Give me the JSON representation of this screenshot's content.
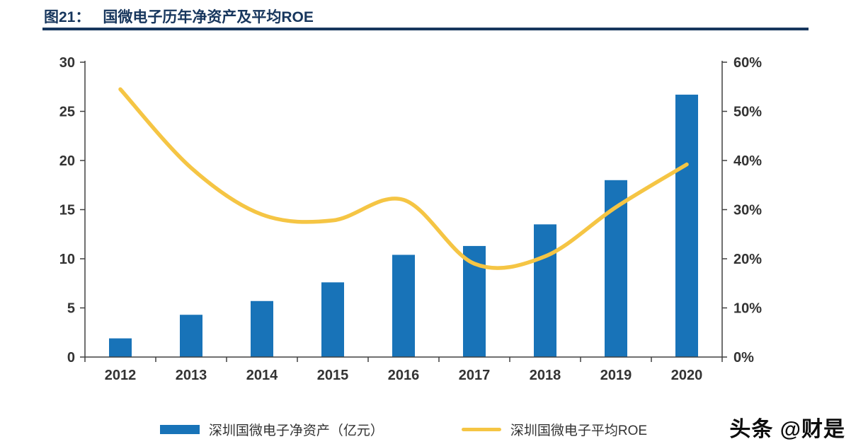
{
  "header": {
    "figure_label": "图21：",
    "title": "国微电子历年净资产及平均ROE"
  },
  "watermark": "头条 @财是",
  "colors": {
    "bar": "#1873B8",
    "line": "#F5C544",
    "title": "#17365D",
    "axis": "#404040"
  },
  "chart_data": {
    "type": "bar",
    "subtype": "bar+line combo, dual axis",
    "title": "图21：国微电子历年净资产及平均ROE",
    "categories": [
      "2012",
      "2013",
      "2014",
      "2015",
      "2016",
      "2017",
      "2018",
      "2019",
      "2020"
    ],
    "series": [
      {
        "name": "深圳国微电子净资产（亿元）",
        "type": "bar",
        "axis": "left",
        "values": [
          1.9,
          4.3,
          5.7,
          7.6,
          10.4,
          11.3,
          13.5,
          18.0,
          26.7
        ]
      },
      {
        "name": "深圳国微电子平均ROE",
        "type": "line",
        "axis": "right",
        "values": [
          54.5,
          38.5,
          29.0,
          27.8,
          32.0,
          19.0,
          20.5,
          30.5,
          39.2
        ],
        "unit": "%"
      }
    ],
    "left_axis": {
      "min": 0,
      "max": 30,
      "ticks": [
        "0",
        "5",
        "10",
        "15",
        "20",
        "25",
        "30"
      ]
    },
    "right_axis": {
      "min": 0,
      "max": 60,
      "ticks": [
        "0%",
        "10%",
        "20%",
        "30%",
        "40%",
        "50%",
        "60%"
      ]
    },
    "grid": false,
    "legend_position": "bottom",
    "legend": [
      "深圳国微电子净资产（亿元）",
      "深圳国微电子平均ROE"
    ]
  }
}
